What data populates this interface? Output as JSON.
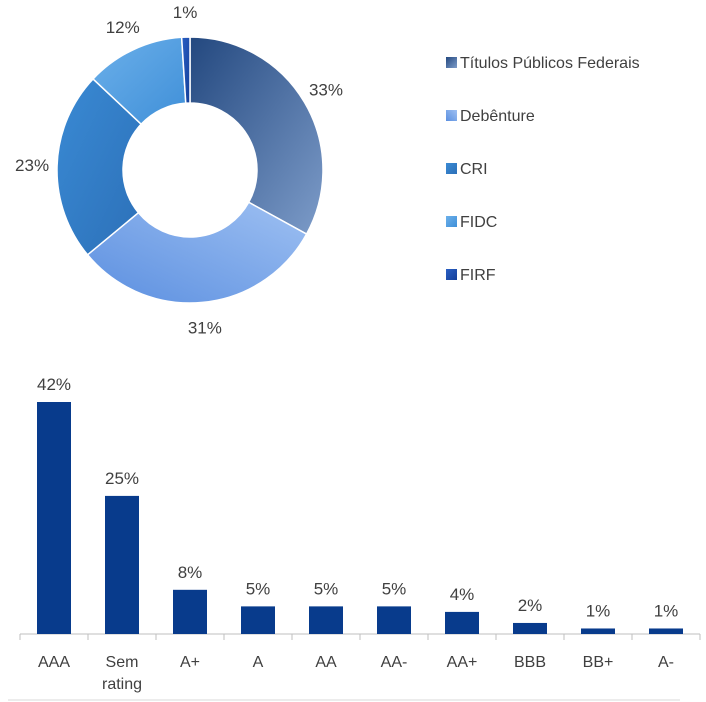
{
  "chart_data": [
    {
      "type": "pie",
      "donut": true,
      "categories": [
        "Títulos Públicos Federais",
        "Debênture",
        "CRI",
        "FIDC",
        "FIRF"
      ],
      "values": [
        33,
        31,
        23,
        12,
        1
      ],
      "data_labels": [
        "33%",
        "31%",
        "23%",
        "12%",
        "1%"
      ],
      "legend": "right",
      "colors": {
        "Títulos Públicos Federais": "#2d4f8a",
        "Debênture": "#7fa8e8",
        "CRI": "#3b87cc",
        "FIDC": "#4f9ee0",
        "FIRF": "#1d4fae"
      }
    },
    {
      "type": "bar",
      "categories": [
        "AAA",
        "Sem rating",
        "A+",
        "A",
        "AA",
        "AA-",
        "AA+",
        "BBB",
        "BB+",
        "A-"
      ],
      "values": [
        42,
        25,
        8,
        5,
        5,
        5,
        4,
        2,
        1,
        1
      ],
      "data_labels": [
        "42%",
        "25%",
        "8%",
        "5%",
        "5%",
        "5%",
        "4%",
        "2%",
        "1%",
        "1%"
      ],
      "color": "#083b8c"
    }
  ]
}
